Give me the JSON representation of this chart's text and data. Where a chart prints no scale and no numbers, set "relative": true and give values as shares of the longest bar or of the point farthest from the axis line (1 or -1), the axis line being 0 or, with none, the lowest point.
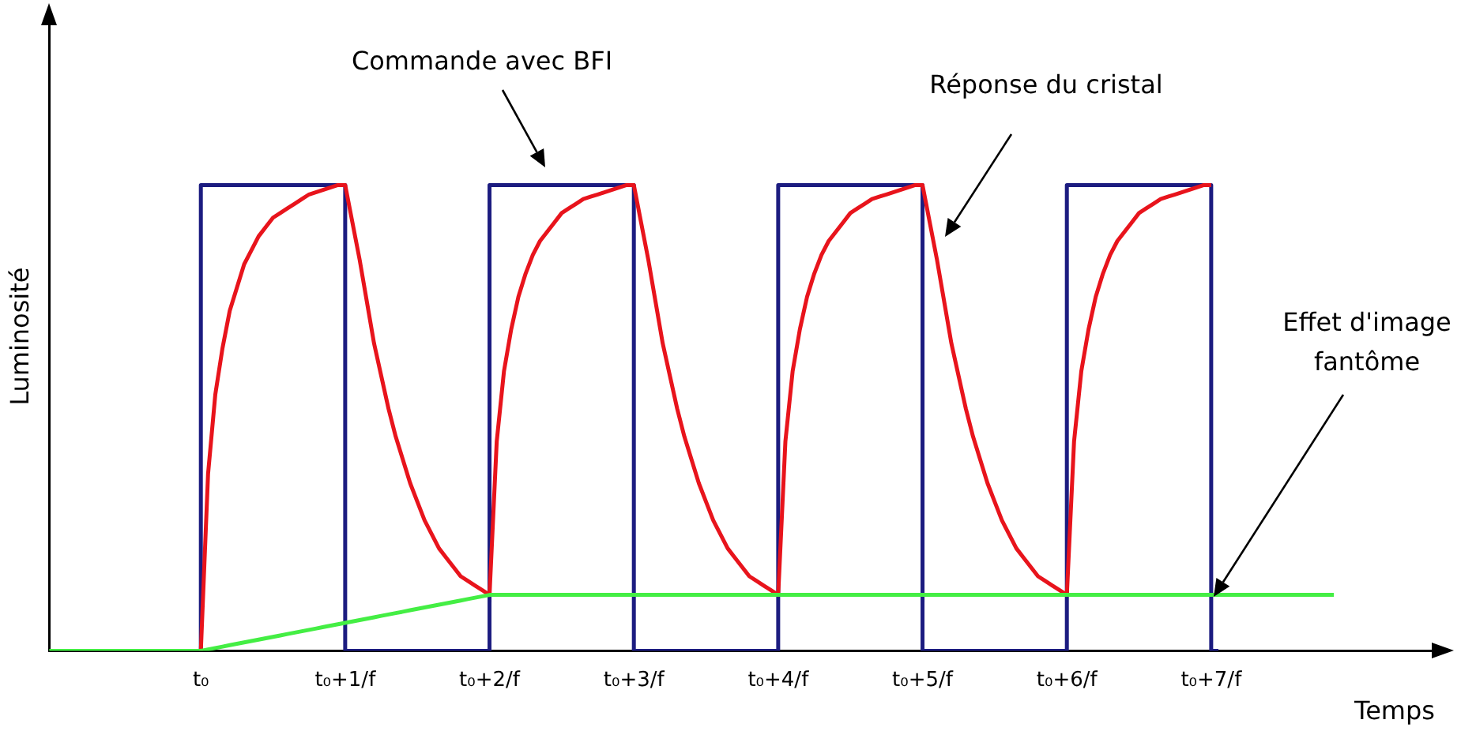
{
  "chart_data": {
    "type": "line",
    "relative": true,
    "xlabel": "Temps",
    "ylabel": "Luminosité",
    "categories": [
      null,
      null,
      null,
      null,
      null,
      null,
      null,
      null,
      null,
      null,
      null,
      null,
      null,
      null,
      null,
      null,
      null,
      null,
      null,
      null,
      null,
      "t₀",
      null,
      null,
      null,
      null,
      null,
      null,
      null,
      null,
      null,
      null,
      null,
      null,
      null,
      null,
      null,
      null,
      null,
      null,
      null,
      "t₀+1/f",
      null,
      null,
      null,
      null,
      null,
      null,
      null,
      null,
      null,
      null,
      null,
      null,
      null,
      null,
      null,
      null,
      null,
      null,
      null,
      "t₀+2/f",
      null,
      null,
      null,
      null,
      null,
      null,
      null,
      null,
      null,
      null,
      null,
      null,
      null,
      null,
      null,
      null,
      null,
      null,
      null,
      "t₀+3/f",
      null,
      null,
      null,
      null,
      null,
      null,
      null,
      null,
      null,
      null,
      null,
      null,
      null,
      null,
      null,
      null,
      null,
      null,
      null,
      "t₀+4/f",
      null,
      null,
      null,
      null,
      null,
      null,
      null,
      null,
      null,
      null,
      null,
      null,
      null,
      null,
      null,
      null,
      null,
      null,
      null,
      "t₀+5/f",
      null,
      null,
      null,
      null,
      null,
      null,
      null,
      null,
      null,
      null,
      null,
      null,
      null,
      null,
      null,
      null,
      null,
      null,
      null,
      "t₀+6/f",
      null,
      null,
      null,
      null,
      null,
      null,
      null,
      null,
      null,
      null,
      null,
      null,
      null,
      null,
      null,
      null,
      null,
      null,
      null,
      "t₀+7/f",
      null,
      null,
      null,
      null,
      null,
      null,
      null,
      null,
      null,
      null,
      null,
      null,
      null,
      null,
      null,
      null,
      null,
      null,
      null,
      null,
      null,
      null,
      null,
      null,
      null,
      null,
      null,
      null,
      null,
      null,
      null
    ],
    "grid": false,
    "legend": false,
    "marker": "none",
    "line_style": "solid",
    "series": [
      {
        "type": "step",
        "color": "#1c1c80",
        "values": [
          null,
          null,
          null,
          null,
          null,
          null,
          null,
          null,
          null,
          null,
          null,
          null,
          null,
          null,
          null,
          null,
          null,
          null,
          null,
          null,
          null,
          0,
          1,
          1,
          1,
          1,
          1,
          1,
          1,
          1,
          1,
          1,
          1,
          1,
          1,
          1,
          1,
          1,
          1,
          1,
          1,
          1,
          0,
          0,
          0,
          0,
          0,
          0,
          0,
          0,
          0,
          0,
          0,
          0,
          0,
          0,
          0,
          0,
          0,
          0,
          0,
          0,
          1,
          1,
          1,
          1,
          1,
          1,
          1,
          1,
          1,
          1,
          1,
          1,
          1,
          1,
          1,
          1,
          1,
          1,
          1,
          1,
          0,
          0,
          0,
          0,
          0,
          0,
          0,
          0,
          0,
          0,
          0,
          0,
          0,
          0,
          0,
          0,
          0,
          0,
          0,
          0,
          1,
          1,
          1,
          1,
          1,
          1,
          1,
          1,
          1,
          1,
          1,
          1,
          1,
          1,
          1,
          1,
          1,
          1,
          1,
          1,
          0,
          0,
          0,
          0,
          0,
          0,
          0,
          0,
          0,
          0,
          0,
          0,
          0,
          0,
          0,
          0,
          0,
          0,
          0,
          0,
          1,
          1,
          1,
          1,
          1,
          1,
          1,
          1,
          1,
          1,
          1,
          1,
          1,
          1,
          1,
          1,
          1,
          1,
          1,
          1,
          0,
          null,
          null,
          null,
          null,
          null,
          null,
          null,
          null,
          null,
          null,
          null,
          null,
          null,
          null,
          null,
          null,
          null,
          null,
          null,
          null,
          null,
          null,
          null,
          null,
          null,
          null,
          null,
          null,
          null,
          null
        ]
      },
      {
        "color": "#e8141c",
        "values": [
          null,
          null,
          null,
          null,
          null,
          null,
          null,
          null,
          null,
          null,
          null,
          null,
          null,
          null,
          null,
          null,
          null,
          null,
          null,
          null,
          null,
          0,
          0.38,
          0.55,
          0.65,
          0.73,
          0.78,
          0.83,
          0.86,
          0.89,
          0.91,
          0.93,
          0.94,
          0.95,
          0.96,
          0.97,
          0.98,
          0.985,
          0.99,
          0.995,
          1,
          1,
          0.92,
          0.84,
          0.75,
          0.66,
          0.59,
          0.52,
          0.46,
          0.41,
          0.36,
          0.32,
          0.28,
          0.25,
          0.22,
          0.2,
          0.18,
          0.16,
          0.15,
          0.14,
          0.13,
          0.12,
          0.45,
          0.6,
          0.69,
          0.76,
          0.81,
          0.85,
          0.88,
          0.9,
          0.92,
          0.94,
          0.95,
          0.96,
          0.97,
          0.975,
          0.98,
          0.985,
          0.99,
          0.995,
          1,
          1,
          0.92,
          0.84,
          0.75,
          0.66,
          0.59,
          0.52,
          0.46,
          0.41,
          0.36,
          0.32,
          0.28,
          0.25,
          0.22,
          0.2,
          0.18,
          0.16,
          0.15,
          0.14,
          0.13,
          0.12,
          0.45,
          0.6,
          0.69,
          0.76,
          0.81,
          0.85,
          0.88,
          0.9,
          0.92,
          0.94,
          0.95,
          0.96,
          0.97,
          0.975,
          0.98,
          0.985,
          0.99,
          0.995,
          1,
          1,
          0.92,
          0.84,
          0.75,
          0.66,
          0.59,
          0.52,
          0.46,
          0.41,
          0.36,
          0.32,
          0.28,
          0.25,
          0.22,
          0.2,
          0.18,
          0.16,
          0.15,
          0.14,
          0.13,
          0.12,
          0.45,
          0.6,
          0.69,
          0.76,
          0.81,
          0.85,
          0.88,
          0.9,
          0.92,
          0.94,
          0.95,
          0.96,
          0.97,
          0.975,
          0.98,
          0.985,
          0.99,
          0.995,
          1,
          1,
          null,
          null,
          null,
          null,
          null,
          null,
          null,
          null,
          null,
          null,
          null,
          null,
          null,
          null,
          null,
          null,
          null,
          null,
          null,
          null,
          null,
          null,
          null,
          null,
          null,
          null,
          null,
          null,
          null,
          null,
          null
        ]
      },
      {
        "color": "#44ee44",
        "values": [
          0,
          0,
          0,
          0,
          0,
          0,
          0,
          0,
          0,
          0,
          0,
          0,
          0,
          0,
          0,
          0,
          0,
          0,
          0,
          0,
          0,
          0,
          0.003,
          0.006,
          0.009,
          0.012,
          0.015,
          0.018,
          0.021,
          0.024,
          0.027,
          0.03,
          0.033,
          0.036,
          0.039,
          0.042,
          0.045,
          0.048,
          0.051,
          0.054,
          0.057,
          0.06,
          0.063,
          0.066,
          0.069,
          0.072,
          0.075,
          0.078,
          0.081,
          0.084,
          0.087,
          0.09,
          0.093,
          0.096,
          0.099,
          0.102,
          0.105,
          0.108,
          0.111,
          0.114,
          0.117,
          0.12,
          0.12,
          0.12,
          0.12,
          0.12,
          0.12,
          0.12,
          0.12,
          0.12,
          0.12,
          0.12,
          0.12,
          0.12,
          0.12,
          0.12,
          0.12,
          0.12,
          0.12,
          0.12,
          0.12,
          0.12,
          0.12,
          0.12,
          0.12,
          0.12,
          0.12,
          0.12,
          0.12,
          0.12,
          0.12,
          0.12,
          0.12,
          0.12,
          0.12,
          0.12,
          0.12,
          0.12,
          0.12,
          0.12,
          0.12,
          0.12,
          0.12,
          0.12,
          0.12,
          0.12,
          0.12,
          0.12,
          0.12,
          0.12,
          0.12,
          0.12,
          0.12,
          0.12,
          0.12,
          0.12,
          0.12,
          0.12,
          0.12,
          0.12,
          0.12,
          0.12,
          0.12,
          0.12,
          0.12,
          0.12,
          0.12,
          0.12,
          0.12,
          0.12,
          0.12,
          0.12,
          0.12,
          0.12,
          0.12,
          0.12,
          0.12,
          0.12,
          0.12,
          0.12,
          0.12,
          0.12,
          0.12,
          0.12,
          0.12,
          0.12,
          0.12,
          0.12,
          0.12,
          0.12,
          0.12,
          0.12,
          0.12,
          0.12,
          0.12,
          0.12,
          0.12,
          0.12,
          0.12,
          0.12,
          0.12,
          0.12,
          0.12,
          0.12,
          0.12,
          0.12,
          0.12,
          0.12,
          0.12,
          0.12,
          0.12,
          0.12,
          0.12,
          0.12,
          0.12,
          0.12,
          0.12,
          0.12,
          0.12,
          null,
          null,
          null,
          null,
          null,
          null,
          null,
          null,
          null,
          null,
          null,
          null,
          null,
          null
        ]
      }
    ],
    "annotations": [
      "Commande avec BFI",
      "Réponse du cristal",
      "Effet d'image fantôme"
    ]
  }
}
